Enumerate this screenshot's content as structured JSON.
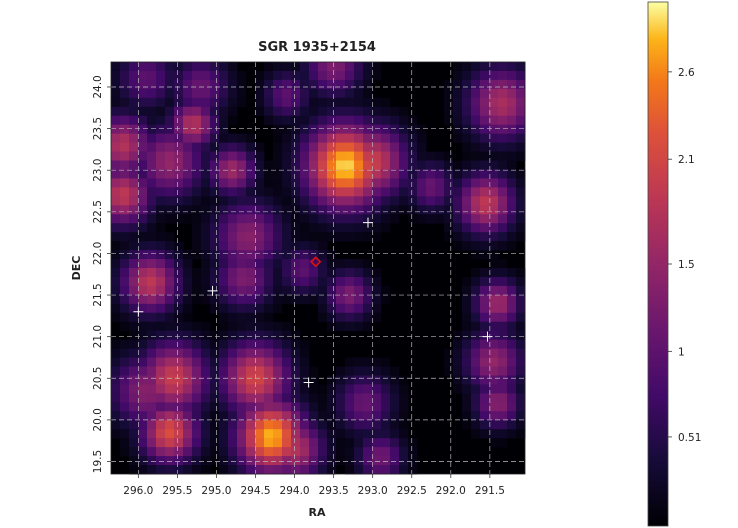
{
  "chart_data": {
    "type": "heatmap",
    "title": "SGR 1935+2154",
    "xlabel": "RA",
    "ylabel": "DEC",
    "x_ticks": [
      "296.0",
      "295.5",
      "295.0",
      "294.5",
      "294.0",
      "293.5",
      "293.0",
      "292.5",
      "292.0",
      "291.5"
    ],
    "y_ticks": [
      "19.5",
      "20.0",
      "20.5",
      "21.0",
      "21.5",
      "22.0",
      "22.5",
      "23.0",
      "23.5",
      "24.0"
    ],
    "x_tick_values": [
      296.0,
      295.5,
      295.0,
      294.5,
      294.0,
      293.5,
      293.0,
      292.5,
      292.0,
      291.5
    ],
    "y_tick_values": [
      19.5,
      20.0,
      20.5,
      21.0,
      21.5,
      22.0,
      22.5,
      23.0,
      23.5,
      24.0
    ],
    "xlim": [
      296.35,
      291.05
    ],
    "ylim": [
      19.35,
      24.3
    ],
    "grid": true,
    "colormap": "inferno",
    "colorbar": {
      "ticks": [
        "0.51",
        "1",
        "1.5",
        "2.1",
        "2.6"
      ],
      "tick_values": [
        0.51,
        1.0,
        1.5,
        2.1,
        2.6
      ],
      "range": [
        0.0,
        3.0
      ]
    },
    "hotspots": [
      {
        "ra": 293.35,
        "dec": 23.05,
        "value": 2.9,
        "width": 0.35
      },
      {
        "ra": 293.0,
        "dec": 23.1,
        "value": 2.0,
        "width": 0.3
      },
      {
        "ra": 294.3,
        "dec": 19.8,
        "value": 2.8,
        "width": 0.3
      },
      {
        "ra": 294.0,
        "dec": 19.65,
        "value": 1.8,
        "width": 0.25
      },
      {
        "ra": 295.6,
        "dec": 19.85,
        "value": 2.2,
        "width": 0.25
      },
      {
        "ra": 295.55,
        "dec": 20.5,
        "value": 2.0,
        "width": 0.3
      },
      {
        "ra": 294.5,
        "dec": 20.5,
        "value": 2.1,
        "width": 0.3
      },
      {
        "ra": 295.9,
        "dec": 20.35,
        "value": 1.4,
        "width": 0.3
      },
      {
        "ra": 296.2,
        "dec": 22.7,
        "value": 1.9,
        "width": 0.25
      },
      {
        "ra": 296.2,
        "dec": 23.3,
        "value": 1.8,
        "width": 0.25
      },
      {
        "ra": 295.85,
        "dec": 21.65,
        "value": 1.9,
        "width": 0.25
      },
      {
        "ra": 295.3,
        "dec": 23.55,
        "value": 1.8,
        "width": 0.2
      },
      {
        "ra": 295.6,
        "dec": 23.1,
        "value": 1.5,
        "width": 0.3
      },
      {
        "ra": 294.8,
        "dec": 23.0,
        "value": 1.6,
        "width": 0.2
      },
      {
        "ra": 294.6,
        "dec": 22.2,
        "value": 1.4,
        "width": 0.3
      },
      {
        "ra": 294.65,
        "dec": 21.7,
        "value": 1.3,
        "width": 0.25
      },
      {
        "ra": 291.35,
        "dec": 23.8,
        "value": 1.7,
        "width": 0.3
      },
      {
        "ra": 291.55,
        "dec": 22.6,
        "value": 1.9,
        "width": 0.25
      },
      {
        "ra": 291.4,
        "dec": 21.4,
        "value": 1.6,
        "width": 0.2
      },
      {
        "ra": 291.45,
        "dec": 20.7,
        "value": 1.5,
        "width": 0.25
      },
      {
        "ra": 291.4,
        "dec": 20.2,
        "value": 1.4,
        "width": 0.2
      },
      {
        "ra": 293.3,
        "dec": 21.5,
        "value": 1.3,
        "width": 0.2
      },
      {
        "ra": 293.5,
        "dec": 24.25,
        "value": 1.3,
        "width": 0.25
      },
      {
        "ra": 295.2,
        "dec": 24.0,
        "value": 1.1,
        "width": 0.25
      },
      {
        "ra": 292.25,
        "dec": 22.8,
        "value": 1.1,
        "width": 0.2
      },
      {
        "ra": 293.1,
        "dec": 20.2,
        "value": 1.1,
        "width": 0.25
      },
      {
        "ra": 292.9,
        "dec": 19.55,
        "value": 1.2,
        "width": 0.2
      },
      {
        "ra": 293.9,
        "dec": 21.8,
        "value": 1.0,
        "width": 0.2
      },
      {
        "ra": 294.1,
        "dec": 23.9,
        "value": 1.0,
        "width": 0.2
      },
      {
        "ra": 295.9,
        "dec": 24.1,
        "value": 1.0,
        "width": 0.25
      }
    ],
    "markers": {
      "source": {
        "ra": 293.73,
        "dec": 21.9,
        "symbol": "diamond",
        "color": "#dd1111"
      },
      "crosses": [
        {
          "ra": 296.0,
          "dec": 21.3
        },
        {
          "ra": 295.05,
          "dec": 21.55
        },
        {
          "ra": 293.06,
          "dec": 22.37
        },
        {
          "ra": 291.53,
          "dec": 21.0
        },
        {
          "ra": 293.82,
          "dec": 20.45
        }
      ]
    }
  }
}
